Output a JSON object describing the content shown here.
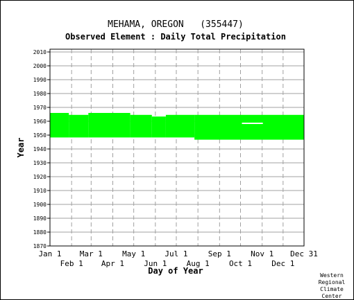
{
  "header": {
    "station": "MEHAMA, OREGON   (355447)",
    "element": "Observed Element : Daily Total Precipitation"
  },
  "credit": [
    "Western",
    "Regional",
    "Climate",
    "Center"
  ],
  "colors": {
    "data": "#00ff00",
    "grid": "#a0a0a0",
    "axis": "#000000",
    "background": "#ffffff"
  },
  "chart_data": {
    "type": "heatmap",
    "xlabel": "Day of Year",
    "ylabel": "Year",
    "xlim": [
      1,
      365
    ],
    "ylim": [
      1870,
      2012
    ],
    "grid": true,
    "x_ticks_top": [
      {
        "label": "Jan 1",
        "day": 1
      },
      {
        "label": "Mar 1",
        "day": 60
      },
      {
        "label": "May 1",
        "day": 121
      },
      {
        "label": "Jul 1",
        "day": 182
      },
      {
        "label": "Sep 1",
        "day": 244
      },
      {
        "label": "Nov 1",
        "day": 305
      },
      {
        "label": "Dec 31",
        "day": 365
      }
    ],
    "x_ticks_bottom": [
      {
        "label": "Feb 1",
        "day": 32
      },
      {
        "label": "Apr 1",
        "day": 91
      },
      {
        "label": "Jun 1",
        "day": 152
      },
      {
        "label": "Aug 1",
        "day": 213
      },
      {
        "label": "Oct 1",
        "day": 274
      },
      {
        "label": "Dec 1",
        "day": 335
      }
    ],
    "y_ticks": [
      1870,
      1880,
      1890,
      1900,
      1910,
      1920,
      1930,
      1940,
      1950,
      1960,
      1970,
      1980,
      1990,
      2000,
      2010
    ],
    "segments": [
      {
        "day_start": 1,
        "day_end": 28,
        "year_start": 1948.3,
        "year_end": 1966.0
      },
      {
        "day_start": 28,
        "day_end": 56,
        "year_start": 1948.3,
        "year_end": 1964.6
      },
      {
        "day_start": 56,
        "day_end": 116,
        "year_start": 1948.3,
        "year_end": 1966.0
      },
      {
        "day_start": 116,
        "day_end": 147,
        "year_start": 1948.3,
        "year_end": 1964.6
      },
      {
        "day_start": 147,
        "day_end": 167,
        "year_start": 1948.3,
        "year_end": 1963.4
      },
      {
        "day_start": 167,
        "day_end": 208,
        "year_start": 1948.3,
        "year_end": 1964.6
      },
      {
        "day_start": 208,
        "day_end": 365,
        "year_start": 1946.7,
        "year_end": 1964.6
      }
    ],
    "missing": [
      {
        "day_start": 276,
        "day_end": 306,
        "year": 1958.5
      }
    ]
  }
}
